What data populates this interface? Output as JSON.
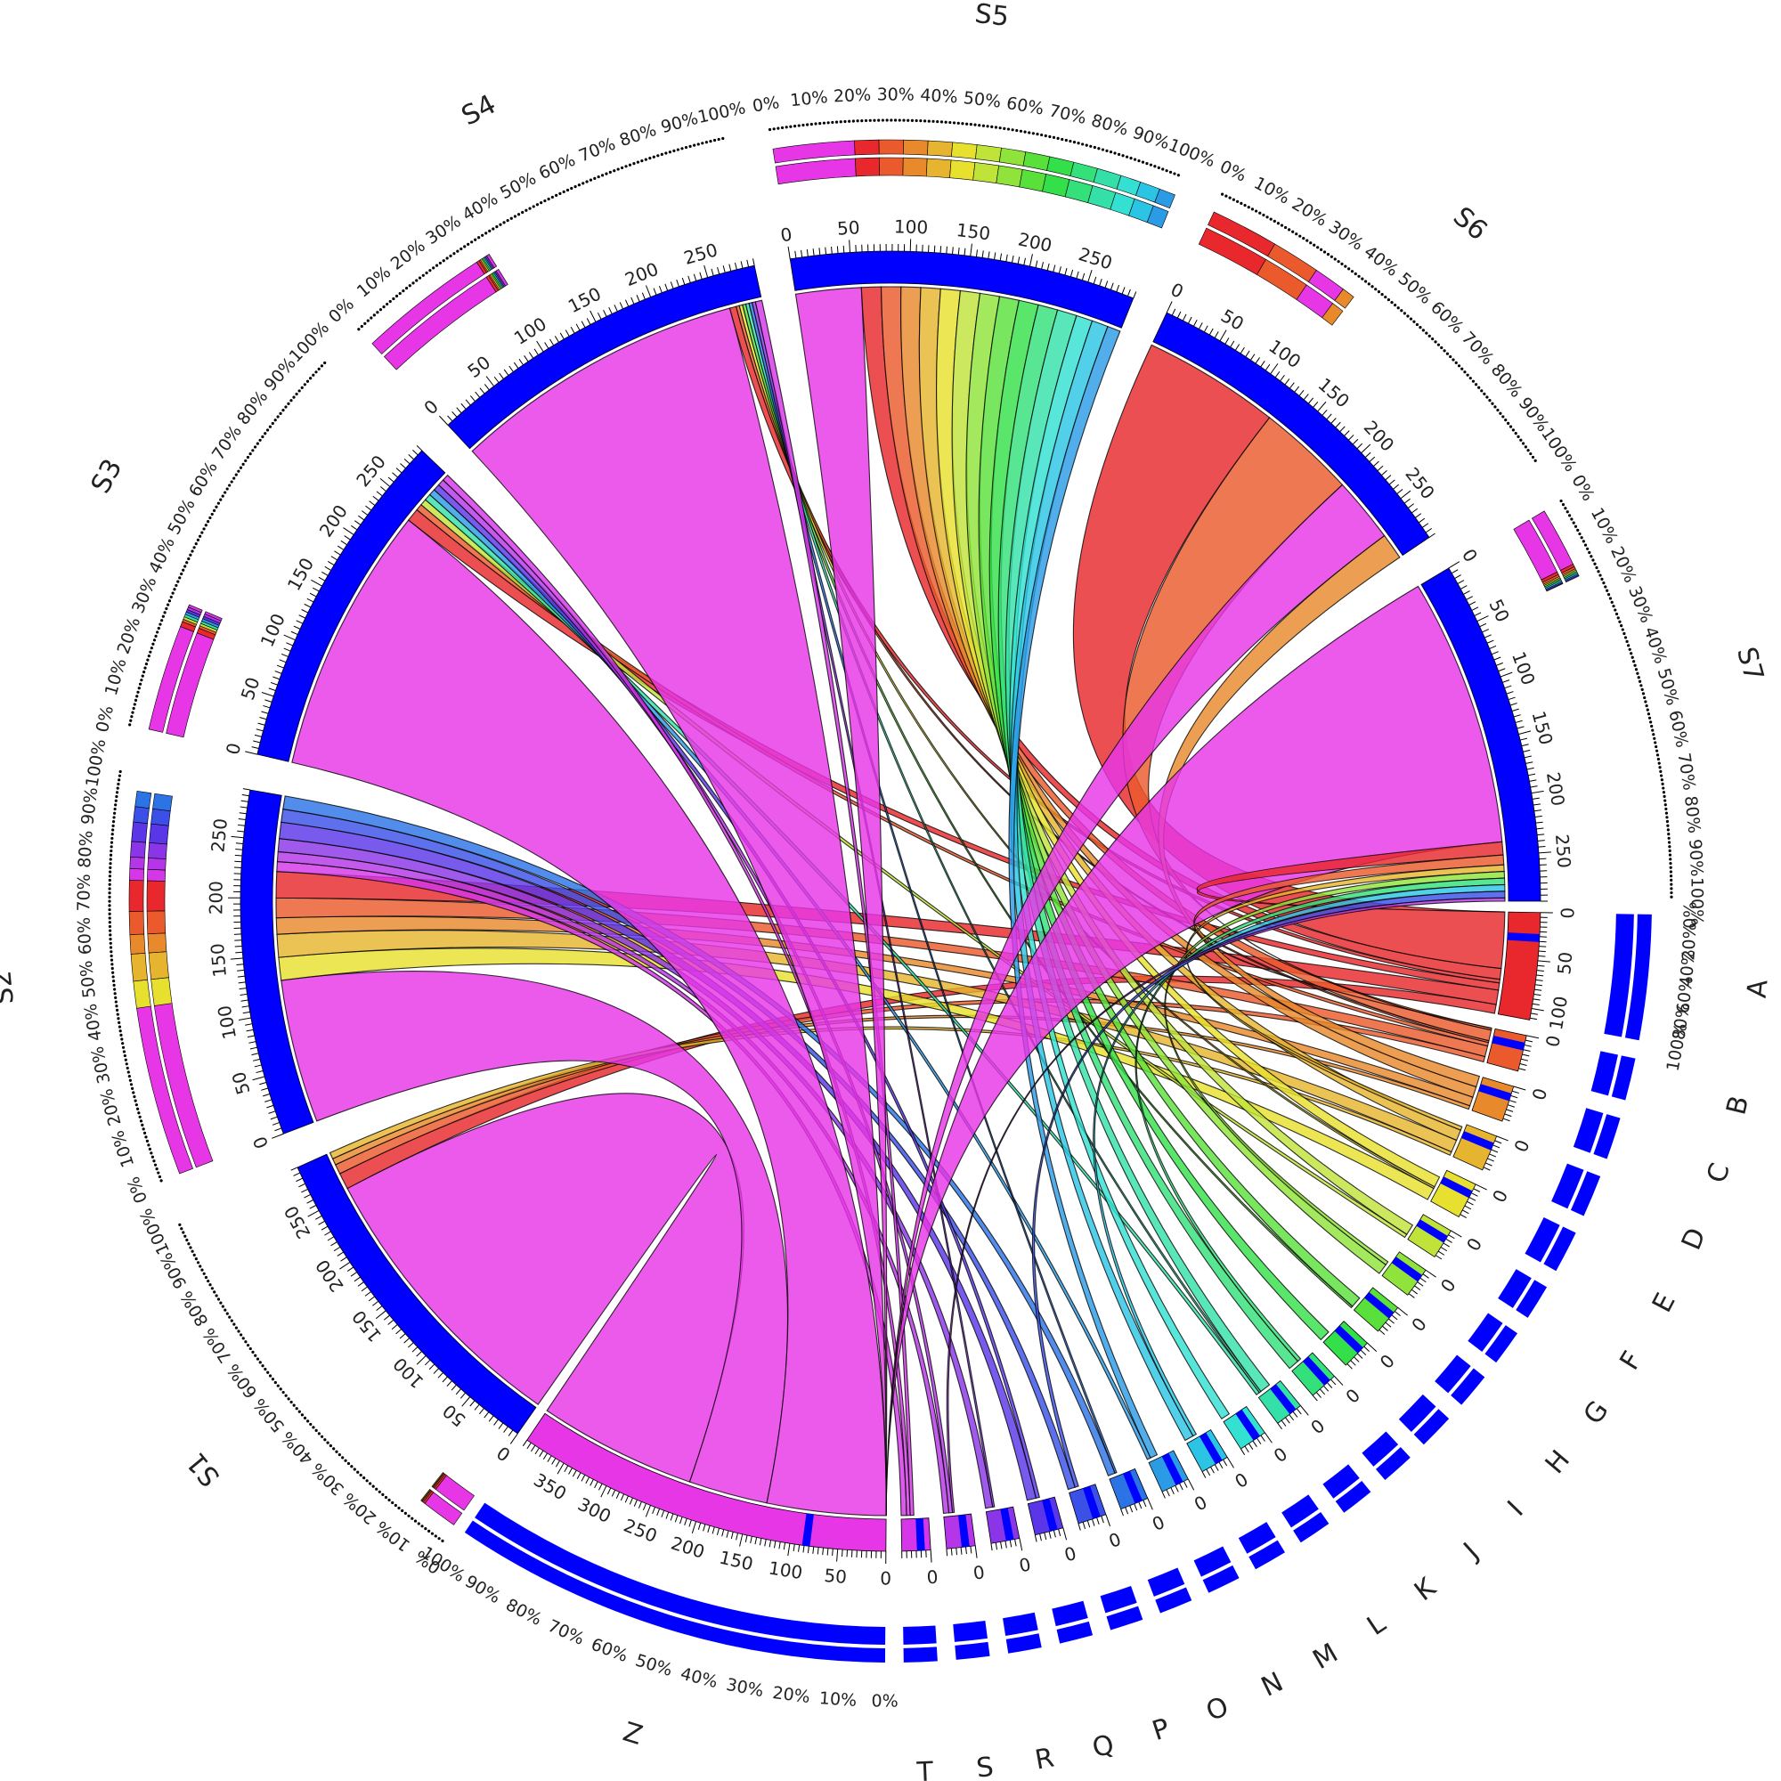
{
  "chart_data": {
    "type": "chord",
    "ideogram_color": "#0000ff",
    "sources": [
      {
        "name": "S1",
        "size": 290,
        "ticks": [
          0,
          50,
          100,
          150,
          200,
          250
        ],
        "composition": [
          {
            "target": "Z",
            "share": 0.88
          },
          {
            "target": "A",
            "share": 0.05
          },
          {
            "target": "B",
            "share": 0.03
          },
          {
            "target": "C",
            "share": 0.02
          },
          {
            "target": "D",
            "share": 0.02
          }
        ]
      },
      {
        "name": "S2",
        "size": 290,
        "ticks": [
          0,
          50,
          100,
          150,
          200,
          250
        ],
        "composition": [
          {
            "target": "Z",
            "share": 0.44
          },
          {
            "target": "E",
            "share": 0.07
          },
          {
            "target": "D",
            "share": 0.07
          },
          {
            "target": "C",
            "share": 0.05
          },
          {
            "target": "B",
            "share": 0.06
          },
          {
            "target": "A",
            "share": 0.08
          },
          {
            "target": "T",
            "share": 0.03
          },
          {
            "target": "S",
            "share": 0.03
          },
          {
            "target": "R",
            "share": 0.04
          },
          {
            "target": "Q",
            "share": 0.05
          },
          {
            "target": "P",
            "share": 0.04
          },
          {
            "target": "O",
            "share": 0.04
          }
        ]
      },
      {
        "name": "S3",
        "size": 290,
        "ticks": [
          0,
          50,
          100,
          150,
          200,
          250
        ],
        "composition": [
          {
            "target": "Z",
            "share": 0.82
          },
          {
            "target": "A",
            "share": 0.04
          },
          {
            "target": "B",
            "share": 0.02
          },
          {
            "target": "F",
            "share": 0.02
          },
          {
            "target": "K",
            "share": 0.02
          },
          {
            "target": "N",
            "share": 0.02
          },
          {
            "target": "Q",
            "share": 0.02
          },
          {
            "target": "S",
            "share": 0.02
          },
          {
            "target": "T",
            "share": 0.02
          }
        ]
      },
      {
        "name": "S4",
        "size": 290,
        "ticks": [
          0,
          50,
          100,
          150,
          200,
          250
        ],
        "composition": [
          {
            "target": "Z",
            "share": 0.9
          },
          {
            "target": "A",
            "share": 0.02
          },
          {
            "target": "B",
            "share": 0.01
          },
          {
            "target": "E",
            "share": 0.01
          },
          {
            "target": "H",
            "share": 0.01
          },
          {
            "target": "K",
            "share": 0.01
          },
          {
            "target": "O",
            "share": 0.01
          },
          {
            "target": "R",
            "share": 0.01
          },
          {
            "target": "T",
            "share": 0.02
          }
        ]
      },
      {
        "name": "S5",
        "size": 290,
        "ticks": [
          0,
          50,
          100,
          150,
          200,
          250
        ],
        "composition": [
          {
            "target": "Z",
            "share": 0.2
          },
          {
            "target": "A",
            "share": 0.06
          },
          {
            "target": "B",
            "share": 0.06
          },
          {
            "target": "C",
            "share": 0.06
          },
          {
            "target": "D",
            "share": 0.06
          },
          {
            "target": "E",
            "share": 0.06
          },
          {
            "target": "F",
            "share": 0.06
          },
          {
            "target": "G",
            "share": 0.06
          },
          {
            "target": "H",
            "share": 0.06
          },
          {
            "target": "I",
            "share": 0.06
          },
          {
            "target": "J",
            "share": 0.06
          },
          {
            "target": "K",
            "share": 0.06
          },
          {
            "target": "L",
            "share": 0.05
          },
          {
            "target": "M",
            "share": 0.05
          },
          {
            "target": "N",
            "share": 0.04
          }
        ]
      },
      {
        "name": "S6",
        "size": 290,
        "ticks": [
          0,
          50,
          100,
          150,
          200,
          250
        ],
        "composition": [
          {
            "target": "A",
            "share": 0.42
          },
          {
            "target": "B",
            "share": 0.3
          },
          {
            "target": "Z",
            "share": 0.2
          },
          {
            "target": "C",
            "share": 0.08
          }
        ]
      },
      {
        "name": "S7",
        "size": 290,
        "ticks": [
          0,
          50,
          100,
          150,
          200,
          250
        ],
        "composition": [
          {
            "target": "Z",
            "share": 0.82
          },
          {
            "target": "A",
            "share": 0.04
          },
          {
            "target": "B",
            "share": 0.03
          },
          {
            "target": "D",
            "share": 0.02
          },
          {
            "target": "G",
            "share": 0.02
          },
          {
            "target": "J",
            "share": 0.02
          },
          {
            "target": "M",
            "share": 0.02
          },
          {
            "target": "P",
            "share": 0.02
          },
          {
            "target": "S",
            "share": 0.01
          }
        ]
      }
    ],
    "targets": [
      {
        "name": "A",
        "size": 112,
        "color": "#e8282c",
        "ticks": [
          0,
          50,
          100
        ]
      },
      {
        "name": "B",
        "size": 38,
        "color": "#ea5a2c",
        "ticks": [
          0
        ]
      },
      {
        "name": "C",
        "size": 38,
        "color": "#e8892c",
        "ticks": [
          0
        ]
      },
      {
        "name": "D",
        "size": 38,
        "color": "#e6b42e",
        "ticks": [
          0
        ]
      },
      {
        "name": "E",
        "size": 38,
        "color": "#e8e02e",
        "ticks": [
          0
        ]
      },
      {
        "name": "F",
        "size": 32,
        "color": "#c0e33a",
        "ticks": [
          0
        ]
      },
      {
        "name": "G",
        "size": 32,
        "color": "#90e33a",
        "ticks": [
          0
        ]
      },
      {
        "name": "H",
        "size": 32,
        "color": "#5ae03a",
        "ticks": [
          0
        ]
      },
      {
        "name": "I",
        "size": 32,
        "color": "#34e04a",
        "ticks": [
          0
        ]
      },
      {
        "name": "J",
        "size": 30,
        "color": "#34e07a",
        "ticks": [
          0
        ]
      },
      {
        "name": "K",
        "size": 30,
        "color": "#34e0a8",
        "ticks": [
          0
        ]
      },
      {
        "name": "L",
        "size": 30,
        "color": "#34e0d2",
        "ticks": [
          0
        ]
      },
      {
        "name": "M",
        "size": 30,
        "color": "#2cc4e4",
        "ticks": [
          0
        ]
      },
      {
        "name": "N",
        "size": 30,
        "color": "#2c9be6",
        "ticks": [
          0
        ]
      },
      {
        "name": "O",
        "size": 30,
        "color": "#2c74e6",
        "ticks": [
          0
        ]
      },
      {
        "name": "P",
        "size": 30,
        "color": "#3a50e6",
        "ticks": [
          0
        ]
      },
      {
        "name": "Q",
        "size": 30,
        "color": "#5a36e8",
        "ticks": [
          0
        ]
      },
      {
        "name": "R",
        "size": 30,
        "color": "#8a36e8",
        "ticks": [
          0
        ]
      },
      {
        "name": "S",
        "size": 30,
        "color": "#b436e8",
        "ticks": [
          0
        ]
      },
      {
        "name": "T",
        "size": 30,
        "color": "#d436e8",
        "ticks": [
          0
        ]
      },
      {
        "name": "Z",
        "size": 395,
        "color": "#e636e6",
        "ticks": [
          0,
          50,
          100,
          150,
          200,
          250,
          300,
          350
        ]
      }
    ],
    "percent_ticks": [
      "0%",
      "10%",
      "20%",
      "30%",
      "40%",
      "50%",
      "60%",
      "70%",
      "80%",
      "90%",
      "100%"
    ]
  }
}
